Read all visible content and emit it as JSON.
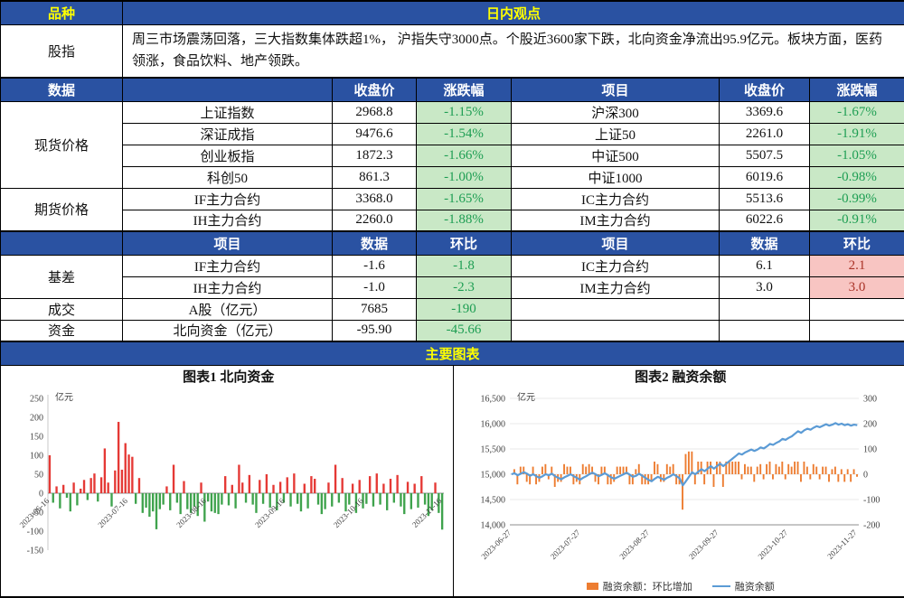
{
  "colors": {
    "header_blue": "#2A52A2",
    "header_yellow": "#FFFF00",
    "green_bg": "#C9E8C6",
    "green_text": "#1E9E53",
    "red_bg": "#F8C5C2",
    "red_text": "#A93226",
    "bar_red": "#E53935",
    "bar_green": "#3FA34D",
    "line_blue": "#5B9BD5",
    "bar_orange": "#ED7D31"
  },
  "top": {
    "variety": "品种",
    "view": "日内观点"
  },
  "view": {
    "label": "股指",
    "text": "周三市场震荡回落，三大指数集体跌超1%， 沪指失守3000点。个股近3600家下跌，北向资金净流出95.9亿元。板块方面，医药领涨，食品饮料、地产领跌。"
  },
  "price_header": {
    "label": "数据",
    "close": "收盘价",
    "change": "涨跌幅",
    "item": "项目"
  },
  "spot": {
    "label": "现货价格",
    "rows": [
      {
        "lname": "上证指数",
        "lclose": "2968.8",
        "lchg": "-1.15%",
        "rname": "沪深300",
        "rclose": "3369.6",
        "rchg": "-1.67%"
      },
      {
        "lname": "深证成指",
        "lclose": "9476.6",
        "lchg": "-1.54%",
        "rname": "上证50",
        "rclose": "2261.0",
        "rchg": "-1.91%"
      },
      {
        "lname": "创业板指",
        "lclose": "1872.3",
        "lchg": "-1.66%",
        "rname": "中证500",
        "rclose": "5507.5",
        "rchg": "-1.05%"
      },
      {
        "lname": "科创50",
        "lclose": "861.3",
        "lchg": "-1.00%",
        "rname": "中证1000",
        "rclose": "6019.6",
        "rchg": "-0.98%"
      }
    ]
  },
  "futures": {
    "label": "期货价格",
    "rows": [
      {
        "lname": "IF主力合约",
        "lclose": "3368.0",
        "lchg": "-1.65%",
        "rname": "IC主力合约",
        "rclose": "5513.6",
        "rchg": "-0.99%"
      },
      {
        "lname": "IH主力合约",
        "lclose": "2260.0",
        "lchg": "-1.88%",
        "rname": "IM主力合约",
        "rclose": "6022.6",
        "rchg": "-0.91%"
      }
    ]
  },
  "basis_header": {
    "item": "项目",
    "data": "数据",
    "mom": "环比"
  },
  "basis": {
    "label": "基差",
    "rows": [
      {
        "lname": "IF主力合约",
        "lval": "-1.6",
        "lmom": "-1.8",
        "rname": "IC主力合约",
        "rval": "6.1",
        "rmom": "2.1"
      },
      {
        "lname": "IH主力合约",
        "lval": "-1.0",
        "lmom": "-2.3",
        "rname": "IM主力合约",
        "rval": "3.0",
        "rmom": "3.0"
      }
    ]
  },
  "turnover": {
    "label": "成交",
    "name": "A股（亿元）",
    "val": "7685",
    "mom": "-190"
  },
  "funds": {
    "label": "资金",
    "name": "北向资金（亿元）",
    "val": "-95.90",
    "mom": "-45.66"
  },
  "charts_title": "主要图表",
  "chart_data": [
    {
      "type": "bar",
      "title": "图表1 北向资金",
      "ylabel": "亿元",
      "ylim": [
        -150,
        250
      ],
      "yticks": [
        250,
        200,
        150,
        100,
        50,
        0,
        -50,
        -100,
        -150
      ],
      "xticks": [
        "2023-06-16",
        "2023-07-16",
        "2023-08-16",
        "2023-09-16",
        "2023-10-16",
        "2023-11-16"
      ],
      "values": [
        100,
        -25,
        18,
        -40,
        22,
        -12,
        -48,
        28,
        -32,
        12,
        35,
        -18,
        40,
        52,
        -22,
        42,
        118,
        28,
        -35,
        60,
        188,
        62,
        132,
        102,
        96,
        -28,
        40,
        -52,
        -38,
        -62,
        -48,
        -95,
        -42,
        -30,
        18,
        -45,
        75,
        -25,
        -55,
        32,
        -42,
        -52,
        -35,
        -60,
        28,
        -75,
        -22,
        -48,
        -52,
        -55,
        -30,
        45,
        -32,
        22,
        -40,
        75,
        28,
        -25,
        48,
        -30,
        -52,
        35,
        -28,
        50,
        -38,
        22,
        -45,
        30,
        -25,
        42,
        -35,
        52,
        -28,
        -48,
        25,
        -40,
        45,
        38,
        -30,
        -55,
        -42,
        28,
        -35,
        75,
        -25,
        40,
        -48,
        -30,
        25,
        -52,
        35,
        -40,
        -28,
        45,
        -35,
        52,
        -30,
        25,
        -45,
        38,
        -25,
        48,
        -35,
        -55,
        30,
        -42,
        25,
        -38,
        45,
        -30,
        -60,
        -45,
        28,
        -52,
        -95.9
      ]
    },
    {
      "type": "line+bar",
      "title": "图表2 融资余额",
      "ylabel": "亿元",
      "left_ylim": [
        14000,
        16500
      ],
      "left_yticks": [
        [
          16500,
          "16,500"
        ],
        [
          16000,
          "16,000"
        ],
        [
          15500,
          "15,500"
        ],
        [
          15000,
          "15,000"
        ],
        [
          14500,
          "14,500"
        ],
        [
          14000,
          "14,000"
        ]
      ],
      "right_ylim": [
        -200,
        300
      ],
      "right_yticks": [
        300,
        200,
        100,
        0,
        -100,
        -200
      ],
      "xticks": [
        "2023-06-27",
        "2023-07-27",
        "2023-08-27",
        "2023-09-27",
        "2023-10-27",
        "2023-11-27"
      ],
      "legend": [
        "融资余额：环比增加",
        "融资余额"
      ],
      "balance": [
        15000,
        15020,
        14980,
        15010,
        15040,
        15010,
        14970,
        15000,
        14960,
        14930,
        14960,
        15000,
        14980,
        15010,
        14960,
        14930,
        14900,
        14940,
        14970,
        15000,
        14960,
        14930,
        14890,
        14930,
        14960,
        15000,
        15030,
        15000,
        14960,
        14990,
        15020,
        14980,
        14940,
        14910,
        14940,
        14970,
        15000,
        15030,
        14990,
        14950,
        14970,
        15010,
        14970,
        14930,
        14890,
        14860,
        14910,
        14950,
        14920,
        14890,
        14930,
        14960,
        15000,
        14960,
        14920,
        14780,
        14860,
        14950,
        15040,
        15000,
        15050,
        15100,
        15060,
        15110,
        15160,
        15110,
        15160,
        15210,
        15160,
        15210,
        15260,
        15310,
        15360,
        15410,
        15390,
        15430,
        15460,
        15490,
        15460,
        15490,
        15530,
        15510,
        15550,
        15600,
        15580,
        15620,
        15650,
        15700,
        15680,
        15720,
        15750,
        15800,
        15850,
        15820,
        15870,
        15900,
        15880,
        15920,
        15950,
        15930,
        15960,
        15990,
        15960,
        15980,
        16010,
        15980,
        16000,
        15970,
        15990,
        15960,
        15980,
        15970
      ]
    }
  ]
}
